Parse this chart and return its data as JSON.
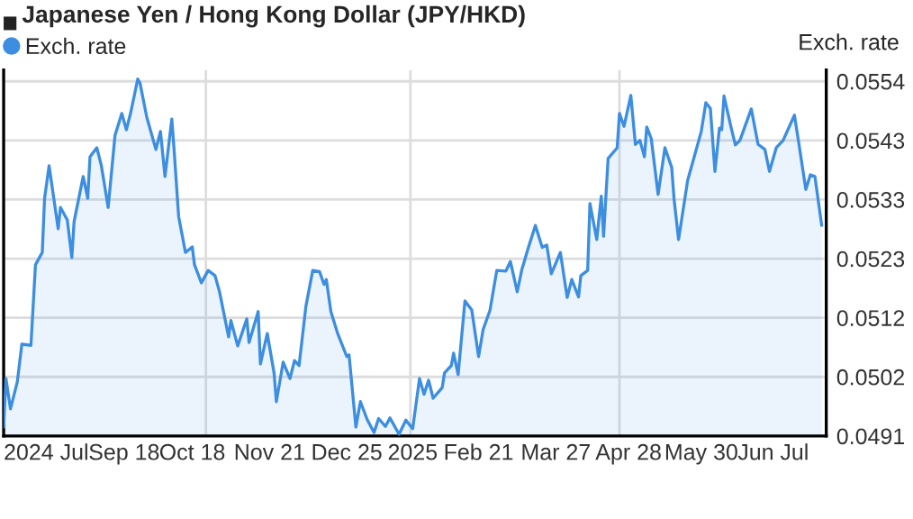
{
  "chart_data": {
    "type": "area",
    "title": "Japanese Yen / Hong Kong Dollar (JPY/HKD)",
    "ylabel": "Exch. rate",
    "x": [
      "2024-07-27",
      "2024-07-28",
      "2024-07-30",
      "2024-08-02",
      "2024-08-04",
      "2024-08-08",
      "2024-08-10",
      "2024-08-13",
      "2024-08-14",
      "2024-08-16",
      "2024-08-20",
      "2024-08-21",
      "2024-08-24",
      "2024-08-26",
      "2024-08-27",
      "2024-08-31",
      "2024-09-02",
      "2024-09-03",
      "2024-09-06",
      "2024-09-08",
      "2024-09-11",
      "2024-09-14",
      "2024-09-17",
      "2024-09-19",
      "2024-09-21",
      "2024-09-24",
      "2024-09-25",
      "2024-09-28",
      "2024-10-02",
      "2024-10-04",
      "2024-10-06",
      "2024-10-09",
      "2024-10-10",
      "2024-10-12",
      "2024-10-15",
      "2024-10-18",
      "2024-10-19",
      "2024-10-22",
      "2024-10-25",
      "2024-10-28",
      "2024-10-30",
      "2024-11-03",
      "2024-11-04",
      "2024-11-07",
      "2024-11-11",
      "2024-11-12",
      "2024-11-16",
      "2024-11-17",
      "2024-11-20",
      "2024-11-23",
      "2024-11-24",
      "2024-11-27",
      "2024-11-30",
      "2024-12-02",
      "2024-12-04",
      "2024-12-07",
      "2024-12-10",
      "2024-12-13",
      "2024-12-15",
      "2024-12-16",
      "2024-12-18",
      "2024-12-21",
      "2024-12-25",
      "2024-12-26",
      "2024-12-29",
      "2024-12-31",
      "2025-01-03",
      "2025-01-06",
      "2025-01-08",
      "2025-01-11",
      "2025-01-13",
      "2025-01-17",
      "2025-01-20",
      "2025-01-23",
      "2025-01-26",
      "2025-01-28",
      "2025-01-30",
      "2025-02-01",
      "2025-02-05",
      "2025-02-06",
      "2025-02-09",
      "2025-02-10",
      "2025-02-12",
      "2025-02-15",
      "2025-02-18",
      "2025-02-21",
      "2025-02-23",
      "2025-02-26",
      "2025-03-01",
      "2025-03-05",
      "2025-03-07",
      "2025-03-10",
      "2025-03-12",
      "2025-03-15",
      "2025-03-18",
      "2025-03-21",
      "2025-03-23",
      "2025-03-25",
      "2025-03-29",
      "2025-04-01",
      "2025-04-03",
      "2025-04-06",
      "2025-04-07",
      "2025-04-10",
      "2025-04-11",
      "2025-04-14",
      "2025-04-16",
      "2025-04-17",
      "2025-04-19",
      "2025-04-23",
      "2025-04-24",
      "2025-04-26",
      "2025-04-29",
      "2025-05-01",
      "2025-05-03",
      "2025-05-05",
      "2025-05-06",
      "2025-05-08",
      "2025-05-11",
      "2025-05-14",
      "2025-05-17",
      "2025-05-18",
      "2025-05-20",
      "2025-05-24",
      "2025-05-30",
      "2025-06-01",
      "2025-06-03",
      "2025-06-05",
      "2025-06-07",
      "2025-06-08",
      "2025-06-09",
      "2025-06-12",
      "2025-06-14",
      "2025-06-16",
      "2025-06-21",
      "2025-06-24",
      "2025-06-27",
      "2025-06-29",
      "2025-07-02",
      "2025-07-05",
      "2025-07-10",
      "2025-07-12",
      "2025-07-15",
      "2025-07-17",
      "2025-07-19",
      "2025-07-22"
    ],
    "series": [
      {
        "name": "Exch. rate",
        "color": "#3d8ee0",
        "values": [
          0.04926,
          0.05012,
          0.04958,
          0.05006,
          0.05073,
          0.05071,
          0.05214,
          0.05236,
          0.05332,
          0.0539,
          0.05278,
          0.05316,
          0.05294,
          0.05227,
          0.05291,
          0.05371,
          0.05332,
          0.05406,
          0.05422,
          0.0539,
          0.05316,
          0.05444,
          0.05483,
          0.05454,
          0.05486,
          0.05544,
          0.05537,
          0.05476,
          0.05419,
          0.05451,
          0.05371,
          0.05473,
          0.05419,
          0.053,
          0.05236,
          0.05246,
          0.05214,
          0.05182,
          0.05204,
          0.05195,
          0.05166,
          0.05086,
          0.05115,
          0.0507,
          0.05118,
          0.05076,
          0.05131,
          0.05038,
          0.05092,
          0.05022,
          0.04971,
          0.05041,
          0.05012,
          0.05044,
          0.05035,
          0.0514,
          0.05204,
          0.05202,
          0.05179,
          0.05188,
          0.05131,
          0.05092,
          0.05051,
          0.05054,
          0.04926,
          0.04971,
          0.04939,
          0.04916,
          0.04941,
          0.04927,
          0.04942,
          0.04913,
          0.04938,
          0.04923,
          0.05012,
          0.04984,
          0.05009,
          0.04977,
          0.04996,
          0.05022,
          0.05035,
          0.05057,
          0.05019,
          0.0515,
          0.05134,
          0.05051,
          0.05099,
          0.05133,
          0.05204,
          0.05203,
          0.0522,
          0.05166,
          0.05205,
          0.05246,
          0.05284,
          0.05245,
          0.05249,
          0.05198,
          0.05236,
          0.05156,
          0.05188,
          0.05157,
          0.05195,
          0.05204,
          0.05323,
          0.05259,
          0.05336,
          0.05265,
          0.05403,
          0.05422,
          0.05483,
          0.0546,
          0.05515,
          0.05428,
          0.05435,
          0.05406,
          0.05459,
          0.05438,
          0.05339,
          0.05422,
          0.05387,
          0.05332,
          0.05259,
          0.05364,
          0.05451,
          0.05502,
          0.05492,
          0.0538,
          0.05457,
          0.05454,
          0.05514,
          0.0546,
          0.05427,
          0.05435,
          0.05491,
          0.05428,
          0.05419,
          0.0538,
          0.05422,
          0.05435,
          0.0548,
          0.05428,
          0.05348,
          0.05374,
          0.05371,
          0.05284
        ]
      }
    ],
    "xlim": [
      "2024-07-27",
      "2025-07-24"
    ],
    "xticks": [
      {
        "value": "2024-07-27",
        "label": "2024 Jul"
      },
      {
        "value": "2024-09-18",
        "label": "Sep 18"
      },
      {
        "value": "2024-10-18",
        "label": "Oct 18"
      },
      {
        "value": "2024-11-21",
        "label": "Nov 21"
      },
      {
        "value": "2024-12-25",
        "label": "Dec 25"
      },
      {
        "value": "2025-01-23",
        "label": "2025"
      },
      {
        "value": "2025-02-21",
        "label": "Feb 21"
      },
      {
        "value": "2025-03-27",
        "label": "Mar 27"
      },
      {
        "value": "2025-04-28",
        "label": "Apr 28"
      },
      {
        "value": "2025-05-30",
        "label": "May 30"
      },
      {
        "value": "2025-06-23",
        "label": "Jun"
      },
      {
        "value": "2025-07-10",
        "label": "Jul"
      }
    ],
    "ylim": [
      0.0491,
      0.0556
    ],
    "yticks": [
      {
        "value": 0.0491,
        "label": "0.0491"
      },
      {
        "value": 0.05015,
        "label": "0.0502"
      },
      {
        "value": 0.0512,
        "label": "0.0512"
      },
      {
        "value": 0.05225,
        "label": "0.0523"
      },
      {
        "value": 0.0533,
        "label": "0.0533"
      },
      {
        "value": 0.05435,
        "label": "0.0543"
      },
      {
        "value": 0.0554,
        "label": "0.0554"
      }
    ],
    "grid": "y",
    "ref_lines": [
      {
        "axis": "x",
        "value": "2024-10-24",
        "color": "#dddddd"
      },
      {
        "axis": "x",
        "value": "2025-01-22",
        "color": "#dddddd"
      },
      {
        "axis": "x",
        "value": "2025-04-24",
        "color": "#dddddd"
      }
    ],
    "legend": "top left"
  }
}
